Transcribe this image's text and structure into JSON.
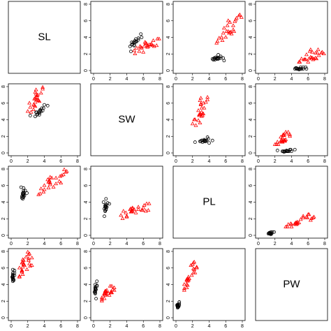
{
  "chart_data": {
    "type": "scatter_matrix",
    "variables": [
      "SL",
      "SW",
      "PL",
      "PW"
    ],
    "xlim": [
      0,
      8
    ],
    "ylim": [
      0,
      8
    ],
    "xticks": [
      0,
      2,
      4,
      6,
      8
    ],
    "yticks": [
      0,
      2,
      4,
      6,
      8
    ],
    "series": [
      {
        "color": "#000000",
        "marker": "circle",
        "values": [
          [
            5.1,
            4.9,
            4.7,
            4.6,
            5.0,
            5.4,
            4.6,
            5.0,
            4.4,
            4.9,
            5.4,
            4.8,
            5.8,
            5.7,
            5.2,
            4.5,
            5.1
          ],
          [
            3.5,
            3.0,
            3.2,
            3.1,
            3.6,
            3.9,
            3.4,
            3.4,
            2.9,
            3.1,
            3.7,
            3.4,
            4.0,
            4.4,
            3.5,
            2.3,
            3.8
          ],
          [
            1.4,
            1.4,
            1.3,
            1.5,
            1.4,
            1.7,
            1.4,
            1.5,
            1.4,
            1.5,
            1.5,
            1.6,
            1.2,
            1.5,
            1.5,
            1.3,
            1.9
          ],
          [
            0.2,
            0.2,
            0.2,
            0.2,
            0.2,
            0.4,
            0.3,
            0.2,
            0.2,
            0.1,
            0.2,
            0.2,
            0.2,
            0.4,
            0.2,
            0.3,
            0.4
          ]
        ]
      },
      {
        "color": "#ff0000",
        "marker": "triangle",
        "values": [
          [
            7.0,
            6.4,
            6.9,
            5.5,
            6.5,
            5.7,
            6.3,
            4.9,
            6.6,
            5.2,
            5.0,
            6.0,
            6.1,
            5.6,
            6.7,
            6.3,
            5.8,
            7.1,
            6.5,
            7.6,
            7.3,
            7.2,
            7.7,
            7.9,
            6.9,
            6.2
          ],
          [
            3.2,
            3.2,
            3.1,
            2.3,
            2.8,
            2.8,
            3.3,
            2.4,
            2.9,
            2.7,
            2.0,
            2.2,
            2.9,
            2.9,
            3.1,
            3.3,
            2.7,
            3.0,
            3.0,
            3.0,
            2.9,
            3.6,
            3.8,
            3.8,
            3.1,
            3.4
          ],
          [
            4.7,
            4.5,
            4.9,
            4.0,
            4.6,
            4.5,
            4.7,
            3.3,
            4.6,
            3.9,
            3.5,
            4.0,
            4.7,
            3.6,
            4.4,
            6.0,
            5.1,
            5.9,
            5.8,
            6.6,
            6.3,
            6.1,
            6.7,
            6.4,
            5.4,
            5.4
          ],
          [
            1.4,
            1.5,
            1.5,
            1.3,
            1.5,
            1.3,
            1.6,
            1.0,
            1.3,
            1.4,
            1.0,
            1.0,
            1.4,
            1.3,
            1.4,
            2.5,
            1.9,
            2.1,
            2.2,
            2.1,
            1.8,
            2.5,
            2.2,
            2.0,
            2.1,
            2.3
          ]
        ]
      }
    ]
  }
}
